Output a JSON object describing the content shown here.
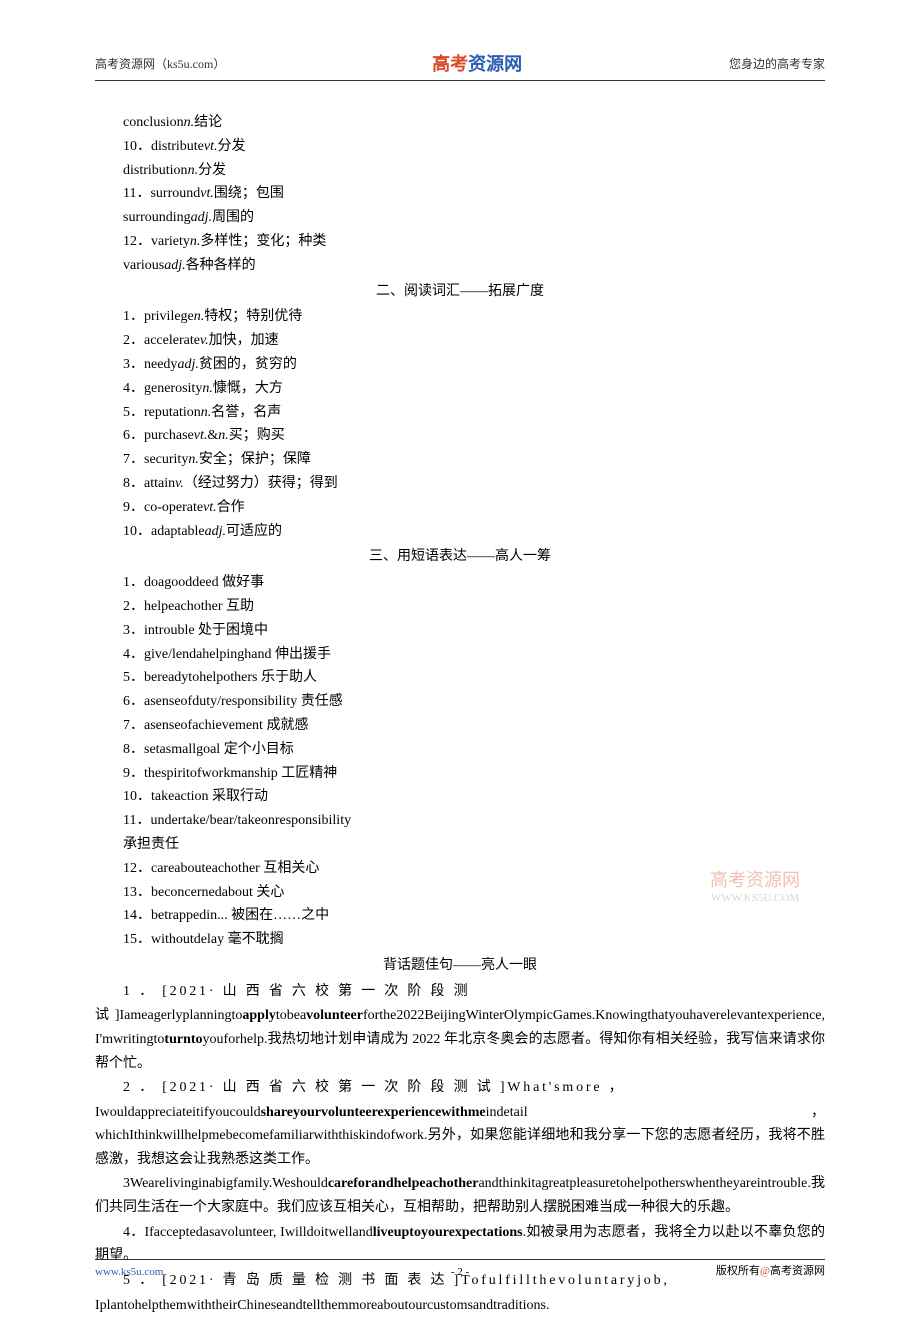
{
  "header": {
    "left": "高考资源网（ks5u.com）",
    "center_red": "高考",
    "center_blue": "资源网",
    "right": "您身边的高考专家",
    "center_red_color": "#d94a2a",
    "center_blue_color": "#2a5db0"
  },
  "vocab_cont": [
    {
      "en": "conclusion",
      "pos": "n.",
      "zh": "结论"
    },
    {
      "num": "10．",
      "en": "distribute",
      "pos": "vt.",
      "zh": "分发"
    },
    {
      "en": "distribution",
      "pos": "n.",
      "zh": "分发"
    },
    {
      "num": "11．",
      "en": "surround",
      "pos": "vt.",
      "zh": "围绕；包围"
    },
    {
      "en": "surrounding",
      "pos": "adj.",
      "zh": "周围的"
    },
    {
      "num": "12．",
      "en": "variety",
      "pos": "n.",
      "zh": "多样性；变化；种类"
    },
    {
      "en": "various",
      "pos": "adj.",
      "zh": "各种各样的"
    }
  ],
  "section2_title": "二、阅读词汇——拓展广度",
  "reading_vocab": [
    {
      "num": "1．",
      "en": "privilege",
      "pos": "n.",
      "zh": "特权；特别优待"
    },
    {
      "num": "2．",
      "en": "accelerate",
      "pos": "v.",
      "zh": "加快，加速"
    },
    {
      "num": "3．",
      "en": "needy",
      "pos": "adj.",
      "zh": "贫困的，贫穷的"
    },
    {
      "num": "4．",
      "en": "generosity",
      "pos": "n.",
      "zh": "慷慨，大方"
    },
    {
      "num": "5．",
      "en": "reputation",
      "pos": "n.",
      "zh": "名誉，名声"
    },
    {
      "num": "6．",
      "en": "purchase",
      "pos": "vt.",
      "pos2": "n.",
      "zh": "买；购买"
    },
    {
      "num": "7．",
      "en": "security",
      "pos": "n.",
      "zh": "安全；保护；保障"
    },
    {
      "num": "8．",
      "en": "attain",
      "pos": "v.",
      "zh": "（经过努力）获得；得到"
    },
    {
      "num": "9．",
      "en": "co-operate",
      "pos": "vt.",
      "zh": "合作"
    },
    {
      "num": "10．",
      "en": "adaptable",
      "pos": "adj.",
      "zh": "可适应的"
    }
  ],
  "section3_title": "三、用短语表达——高人一筹",
  "phrases": [
    {
      "num": "1．",
      "en": "doagooddeed",
      "zh": "做好事"
    },
    {
      "num": "2．",
      "en": "helpeachother",
      "zh": "互助"
    },
    {
      "num": "3．",
      "en": "introuble",
      "zh": "处于困境中"
    },
    {
      "num": "4．",
      "en": "give/lendahelpinghand",
      "zh": "伸出援手"
    },
    {
      "num": "5．",
      "en": "bereadytohelpothers",
      "zh": "乐于助人"
    },
    {
      "num": "6．",
      "en": "asenseofduty/responsibility",
      "zh": "责任感"
    },
    {
      "num": "7．",
      "en": "asenseofachievement",
      "zh": "成就感"
    },
    {
      "num": "8．",
      "en": "setasmallgoal",
      "zh": "定个小目标"
    },
    {
      "num": "9．",
      "en": "thespiritofworkmanship",
      "zh": "工匠精神"
    },
    {
      "num": "10．",
      "en": "takeaction",
      "zh": "采取行动"
    },
    {
      "num": "11．",
      "en": "undertake/bear/takeonresponsibility",
      "zh": ""
    },
    {
      "num": "",
      "en": "",
      "zh": "承担责任"
    },
    {
      "num": "12．",
      "en": "careabouteachother",
      "zh": "互相关心"
    },
    {
      "num": "13．",
      "en": "beconcernedabout",
      "zh": "关心"
    },
    {
      "num": "14．",
      "en": "betrappedin...",
      "zh": "被困在……之中"
    },
    {
      "num": "15．",
      "en": "withoutdelay",
      "zh": "毫不耽搁"
    }
  ],
  "sentences_title": "背话题佳句——亮人一眼",
  "sentences": [
    {
      "num_line": "1 ． [2021· 山 西 省 六 校 第 一 次 阶 段 测",
      "body": "试]Iameagerlyplanningto<b>apply</b>tobea<b>volunteer</b>forthe2022BeijingWinterOlympicGames.Knowingthatyouhaverelevantexperience, I'mwritingto<b>turnto</b>youforhelp.我热切地计划申请成为 2022 年北京冬奥会的志愿者。得知你有相关经验，我写信来请求你帮个忙。"
    },
    {
      "num_line": "2 ． [2021· 山 西 省 六 校 第 一 次 阶 段 测 试 ]What'smore ，",
      "body": "Iwouldappreciateitifyoucould<b>shareyourvolunteerexperiencewithme</b>indetail ，whichIthinkwillhelpmebecomefamiliarwiththiskindofwork.另外，如果您能详细地和我分享一下您的志愿者经历，我将不胜感激，我想这会让我熟悉这类工作。"
    },
    {
      "num_line": "",
      "body": "3Wearelivinginabigfamily.Weshould<b>careforandhelpeachother</b>andthinkitagreatpleasuretohelpotherswhentheyareintrouble.我们共同生活在一个大家庭中。我们应该互相关心，互相帮助，把帮助别人摆脱困难当成一种很大的乐趣。"
    },
    {
      "num_line": "",
      "body": "4．Ifacceptedasavolunteer, Iwilldoitwelland<b>liveuptoyourexpectations</b>.如被录用为志愿者，我将全力以赴以不辜负您的期望。"
    },
    {
      "num_line": "5 ． [2021· 青 岛 质 量 检 测 书 面 表 达 ]Tofulfillthevoluntaryjob,",
      "body": "IplantohelpthemwiththeirChineseandtellthemmoreaboutourcustomsandtraditions."
    }
  ],
  "watermark": {
    "line1": "高考资源网",
    "line2": "WWW.KS5U.COM"
  },
  "footer": {
    "left": "www.ks5u.com",
    "center": "- 2 -",
    "right_prefix": "版权所有",
    "right_at": "@",
    "right_suffix": "高考资源网"
  }
}
